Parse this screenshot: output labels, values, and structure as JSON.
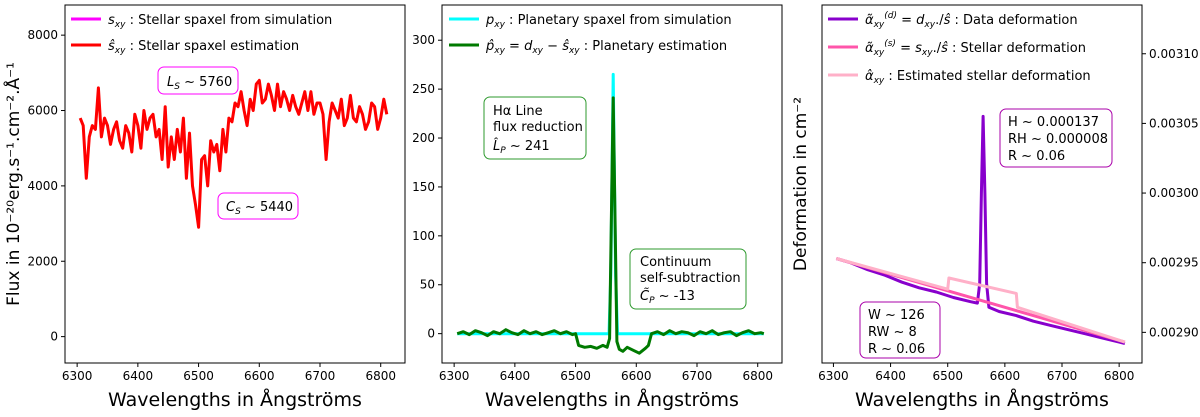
{
  "colors": {
    "stellar_sim": "#ff00ff",
    "stellar_est": "#ff0000",
    "planetary_sim": "#00ffff",
    "planetary_est": "#007a00",
    "data_deformation": "#8800cc",
    "stellar_deformation": "#ff55aa",
    "estimated_stellar_deformation": "#ffb0c8",
    "box_magenta": "#ff00ff",
    "box_green": "#2e9a2e",
    "box_purple": "#aa00aa"
  },
  "chart_data": [
    {
      "type": "line",
      "title": "",
      "xlabel": "Wavelengths in Ångströms",
      "ylabel": "Flux in 10⁻²⁰erg.s⁻¹.cm⁻².Å⁻¹",
      "xlim": [
        6280,
        6840
      ],
      "ylim": [
        -700,
        8800
      ],
      "x_ticks": [
        "6300",
        "6400",
        "6500",
        "6600",
        "6700",
        "6800"
      ],
      "y_ticks": [
        "0",
        "2000",
        "4000",
        "6000",
        "8000"
      ],
      "legend_position": "top-left",
      "series": [
        {
          "name": "sxy : Stellar spaxel from simulation",
          "color_key": "stellar_sim",
          "x": [],
          "y": []
        },
        {
          "name": "ŝxy : Stellar spaxel estimation",
          "color_key": "stellar_est",
          "x": [
            6305,
            6310,
            6315,
            6320,
            6325,
            6330,
            6335,
            6340,
            6345,
            6350,
            6355,
            6360,
            6365,
            6370,
            6375,
            6380,
            6385,
            6390,
            6395,
            6400,
            6405,
            6410,
            6415,
            6420,
            6425,
            6430,
            6435,
            6440,
            6445,
            6450,
            6455,
            6460,
            6465,
            6470,
            6475,
            6480,
            6485,
            6490,
            6495,
            6500,
            6505,
            6510,
            6515,
            6520,
            6525,
            6530,
            6535,
            6540,
            6545,
            6550,
            6555,
            6560,
            6565,
            6570,
            6575,
            6580,
            6585,
            6590,
            6595,
            6600,
            6605,
            6610,
            6615,
            6620,
            6625,
            6630,
            6635,
            6640,
            6645,
            6650,
            6655,
            6660,
            6665,
            6670,
            6675,
            6680,
            6685,
            6690,
            6695,
            6700,
            6705,
            6710,
            6715,
            6720,
            6725,
            6730,
            6735,
            6740,
            6745,
            6750,
            6755,
            6760,
            6765,
            6770,
            6775,
            6780,
            6785,
            6790,
            6795,
            6800,
            6805,
            6810
          ],
          "y": [
            5800,
            5600,
            4200,
            5300,
            5600,
            5500,
            6600,
            5300,
            5800,
            5600,
            5100,
            5500,
            5700,
            5200,
            5000,
            5600,
            5400,
            4900,
            5900,
            5600,
            5000,
            6000,
            5500,
            5800,
            5900,
            5300,
            5500,
            4700,
            6100,
            4500,
            5300,
            4700,
            5500,
            4900,
            5800,
            4200,
            5400,
            4000,
            3500,
            2900,
            4700,
            4800,
            4000,
            5200,
            4900,
            5100,
            4400,
            5500,
            4900,
            5800,
            5700,
            6200,
            6100,
            6500,
            6000,
            5600,
            6300,
            6000,
            6700,
            6800,
            6200,
            6300,
            6700,
            6400,
            6000,
            6700,
            6100,
            6500,
            6300,
            6000,
            6400,
            6100,
            5900,
            6200,
            6500,
            6000,
            6500,
            5900,
            6200,
            6200,
            5900,
            4700,
            5700,
            6200,
            6000,
            5800,
            6300,
            5600,
            5800,
            6400,
            5800,
            5700,
            6100,
            5900,
            5500,
            5700,
            6200,
            6100,
            5500,
            5800,
            6300,
            5900
          ]
        }
      ],
      "annotations": [
        {
          "label": "L",
          "sub": "S",
          "text": " ~ 5760"
        },
        {
          "label": "C",
          "sub": "S",
          "text": " ~ 5440"
        }
      ]
    },
    {
      "type": "line",
      "title": "",
      "xlabel": "Wavelengths in Ångströms",
      "ylabel": "",
      "xlim": [
        6280,
        6840
      ],
      "ylim": [
        -30,
        336
      ],
      "x_ticks": [
        "6300",
        "6400",
        "6500",
        "6600",
        "6700",
        "6800"
      ],
      "y_ticks": [
        "0",
        "50",
        "100",
        "150",
        "200",
        "250",
        "300"
      ],
      "legend_position": "top-right",
      "series": [
        {
          "name": "pxy : Planetary spaxel from simulation",
          "color_key": "planetary_sim",
          "x": [
            6305,
            6550,
            6555,
            6558,
            6562,
            6566,
            6569,
            6575,
            6810
          ],
          "y": [
            0,
            0,
            0,
            60,
            265,
            60,
            0,
            0,
            0
          ]
        },
        {
          "name": "p̂xy = dxy − ŝxy : Planetary estimation",
          "color_key": "planetary_est",
          "x": [
            6305,
            6315,
            6325,
            6335,
            6345,
            6355,
            6365,
            6375,
            6385,
            6395,
            6405,
            6415,
            6425,
            6435,
            6445,
            6455,
            6465,
            6475,
            6485,
            6495,
            6500,
            6505,
            6515,
            6525,
            6535,
            6545,
            6552,
            6556,
            6559,
            6562,
            6565,
            6568,
            6572,
            6578,
            6585,
            6595,
            6605,
            6615,
            6620,
            6625,
            6635,
            6645,
            6655,
            6665,
            6675,
            6685,
            6695,
            6705,
            6715,
            6725,
            6735,
            6745,
            6755,
            6765,
            6775,
            6785,
            6795,
            6805,
            6810
          ],
          "y": [
            0,
            2,
            -1,
            3,
            1,
            -2,
            2,
            0,
            4,
            1,
            -1,
            3,
            0,
            2,
            -1,
            1,
            3,
            0,
            2,
            -1,
            0,
            -12,
            -14,
            -13,
            -15,
            -12,
            -14,
            -5,
            120,
            241,
            120,
            -8,
            -16,
            -18,
            -14,
            -17,
            -20,
            -15,
            -12,
            0,
            2,
            -1,
            3,
            0,
            2,
            1,
            -2,
            2,
            0,
            3,
            -1,
            1,
            2,
            -2,
            1,
            3,
            0,
            1,
            0
          ]
        }
      ],
      "annotations": [
        {
          "lines": [
            "Hα Line",
            "flux reduction",
            "L̂P ~ 241"
          ]
        },
        {
          "lines": [
            "Continuum",
            "self-subtraction",
            "C̃P ~ -13"
          ]
        }
      ]
    },
    {
      "type": "line",
      "title": "",
      "xlabel": "Wavelengths in Ångströms",
      "ylabel": "Deformation in cm⁻²",
      "xlim": [
        6280,
        6840
      ],
      "ylim": [
        0.002878,
        0.003135
      ],
      "x_ticks": [
        "6300",
        "6400",
        "6500",
        "6600",
        "6700",
        "6800"
      ],
      "y_ticks": [
        "0.00290",
        "0.00295",
        "0.00300",
        "0.00305",
        "0.00310"
      ],
      "legend_position": "top-right",
      "series": [
        {
          "name": "α̃xy(d) = dxy./ŝ : Data deformation",
          "color_key": "data_deformation",
          "x": [
            6305,
            6330,
            6360,
            6390,
            6420,
            6450,
            6480,
            6510,
            6540,
            6552,
            6556,
            6559,
            6562,
            6565,
            6568,
            6572,
            6590,
            6620,
            6650,
            6680,
            6710,
            6740,
            6770,
            6800,
            6810
          ],
          "y": [
            0.002953,
            0.00295,
            0.002945,
            0.002941,
            0.002936,
            0.002932,
            0.002929,
            0.002925,
            0.002922,
            0.002921,
            0.002935,
            0.003,
            0.003055,
            0.003,
            0.002935,
            0.002918,
            0.002915,
            0.002912,
            0.002908,
            0.002905,
            0.002902,
            0.002899,
            0.002896,
            0.002893,
            0.002892
          ]
        },
        {
          "name": "α̃xy(s) = sxy./ŝ : Stellar deformation",
          "color_key": "stellar_deformation",
          "x": [
            6305,
            6810
          ],
          "y": [
            0.002953,
            0.002893
          ]
        },
        {
          "name": "α̂xy : Estimated stellar deformation",
          "color_key": "estimated_stellar_deformation",
          "x": [
            6305,
            6500,
            6502,
            6620,
            6622,
            6810
          ],
          "y": [
            0.002953,
            0.002931,
            0.002939,
            0.002928,
            0.002918,
            0.002893
          ]
        }
      ],
      "annotations": [
        {
          "lines": [
            "H  ~  0.000137",
            "RH ~ 0.000008",
            "R  ~  0.06"
          ]
        },
        {
          "lines": [
            "W ~ 126",
            "RW  ~  8",
            "R ~ 0.06"
          ]
        }
      ]
    }
  ]
}
